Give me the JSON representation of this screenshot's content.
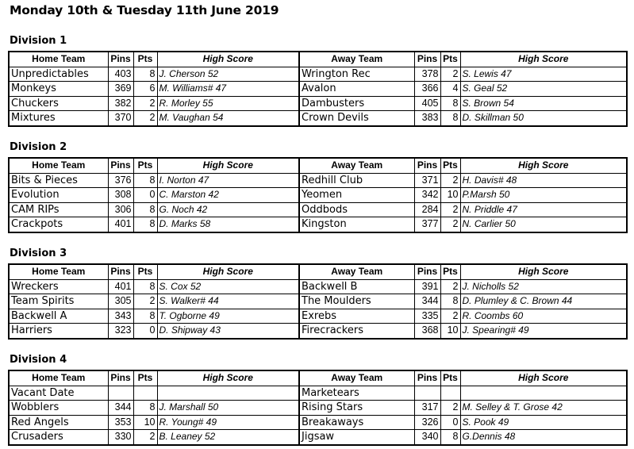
{
  "title": "Monday 10th & Tuesday 11th June 2019",
  "headers": {
    "home_team": "Home Team",
    "pins": "Pins",
    "pts": "Pts",
    "high_score": "High Score",
    "away_team": "Away Team"
  },
  "divisions": [
    {
      "name": "Division 1",
      "rows": [
        {
          "home": "Unpredictables",
          "home_pins": "403",
          "home_pts": "8",
          "home_hs": "J. Cherson 52",
          "away": "Wrington Rec",
          "away_pins": "378",
          "away_pts": "2",
          "away_hs": "S. Lewis 47"
        },
        {
          "home": "Monkeys",
          "home_pins": "369",
          "home_pts": "6",
          "home_hs": "M. Williams# 47",
          "away": "Avalon",
          "away_pins": "366",
          "away_pts": "4",
          "away_hs": "S. Geal 52"
        },
        {
          "home": "Chuckers",
          "home_pins": "382",
          "home_pts": "2",
          "home_hs": "R. Morley 55",
          "away": "Dambusters",
          "away_pins": "405",
          "away_pts": "8",
          "away_hs": "S. Brown 54"
        },
        {
          "home": "Mixtures",
          "home_pins": "370",
          "home_pts": "2",
          "home_hs": "M. Vaughan 54",
          "away": "Crown Devils",
          "away_pins": "383",
          "away_pts": "8",
          "away_hs": "D. Skillman 50"
        }
      ]
    },
    {
      "name": "Division 2",
      "rows": [
        {
          "home": "Bits & Pieces",
          "home_pins": "376",
          "home_pts": "8",
          "home_hs": "I. Norton 47",
          "away": "Redhill Club",
          "away_pins": "371",
          "away_pts": "2",
          "away_hs": "H. Davis# 48"
        },
        {
          "home": "Evolution",
          "home_pins": "308",
          "home_pts": "0",
          "home_hs": "C. Marston 42",
          "away": "Yeomen",
          "away_pins": "342",
          "away_pts": "10",
          "away_hs": "P.Marsh 50"
        },
        {
          "home": "CAM RIPs",
          "home_pins": "306",
          "home_pts": "8",
          "home_hs": "G. Noch 42",
          "away": "Oddbods",
          "away_pins": "284",
          "away_pts": "2",
          "away_hs": "N. Priddle 47"
        },
        {
          "home": "Crackpots",
          "home_pins": "401",
          "home_pts": "8",
          "home_hs": "D. Marks 58",
          "away": "Kingston",
          "away_pins": "377",
          "away_pts": "2",
          "away_hs": "N. Carlier 50"
        }
      ]
    },
    {
      "name": "Division 3",
      "rows": [
        {
          "home": "Wreckers",
          "home_pins": "401",
          "home_pts": "8",
          "home_hs": "S. Cox 52",
          "away": "Backwell B",
          "away_pins": "391",
          "away_pts": "2",
          "away_hs": "J. Nicholls 52"
        },
        {
          "home": "Team Spirits",
          "home_pins": "305",
          "home_pts": "2",
          "home_hs": "S. Walker# 44",
          "away": "The Moulders",
          "away_pins": "344",
          "away_pts": "8",
          "away_hs": "D. Plumley & C. Brown 44"
        },
        {
          "home": "Backwell A",
          "home_pins": "343",
          "home_pts": "8",
          "home_hs": "T. Ogborne 49",
          "away": "Exrebs",
          "away_pins": "335",
          "away_pts": "2",
          "away_hs": "R. Coombs 60"
        },
        {
          "home": "Harriers",
          "home_pins": "323",
          "home_pts": "0",
          "home_hs": "D. Shipway 43",
          "away": "Firecrackers",
          "away_pins": "368",
          "away_pts": "10",
          "away_hs": "J. Spearing# 49"
        }
      ]
    },
    {
      "name": "Division 4",
      "rows": [
        {
          "home": "Vacant Date",
          "home_pins": "",
          "home_pts": "",
          "home_hs": "",
          "away": "Marketears",
          "away_pins": "",
          "away_pts": "",
          "away_hs": ""
        },
        {
          "home": "Wobblers",
          "home_pins": "344",
          "home_pts": "8",
          "home_hs": "J. Marshall 50",
          "away": "Rising Stars",
          "away_pins": "317",
          "away_pts": "2",
          "away_hs": "M. Selley & T. Grose 42"
        },
        {
          "home": "Red Angels",
          "home_pins": "353",
          "home_pts": "10",
          "home_hs": "R. Young# 49",
          "away": "Breakaways",
          "away_pins": "326",
          "away_pts": "0",
          "away_hs": "S. Pook 49"
        },
        {
          "home": "Crusaders",
          "home_pins": "330",
          "home_pts": "2",
          "home_hs": "B. Leaney 52",
          "away": "Jigsaw",
          "away_pins": "340",
          "away_pts": "8",
          "away_hs": "G.Dennis 48"
        }
      ]
    }
  ]
}
